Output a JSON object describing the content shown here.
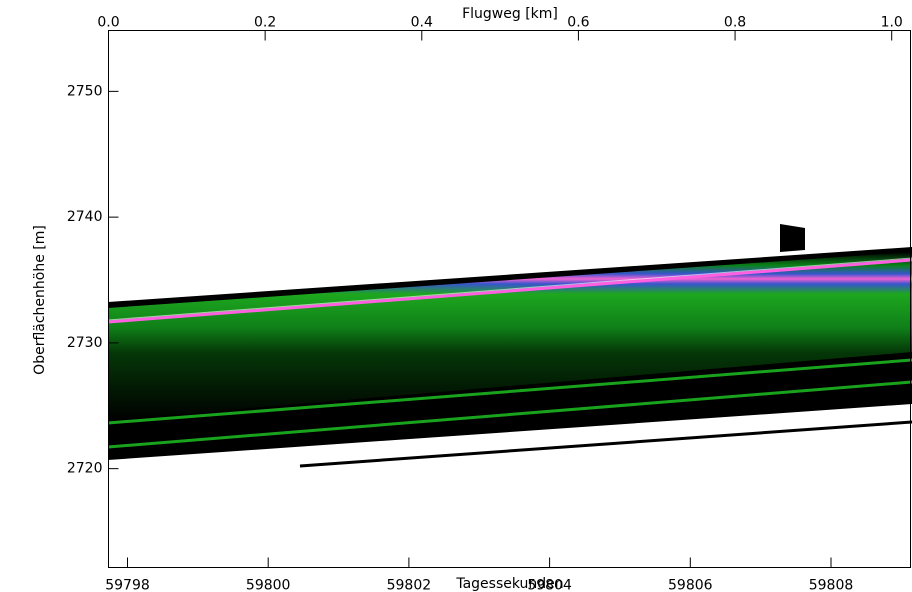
{
  "chart_data": {
    "type": "echogram",
    "title": "Flugweg [km]",
    "x_label": "Tagessekunden",
    "y_label": "Oberflächenhöhe [m]",
    "xlim": [
      59797.73,
      59809.13
    ],
    "xticks": [
      59798,
      59800,
      59802,
      59804,
      59806,
      59808
    ],
    "x2lim": [
      0,
      1.024
    ],
    "x2ticks": [
      {
        "value": 0,
        "label": "0.0"
      },
      0.2,
      0.4,
      0.6,
      0.8,
      {
        "value": 1,
        "label": "1.0"
      }
    ],
    "ylim": [
      2712.14,
      2754.84
    ],
    "yticks": [
      2720,
      2730,
      2740,
      2750
    ]
  }
}
